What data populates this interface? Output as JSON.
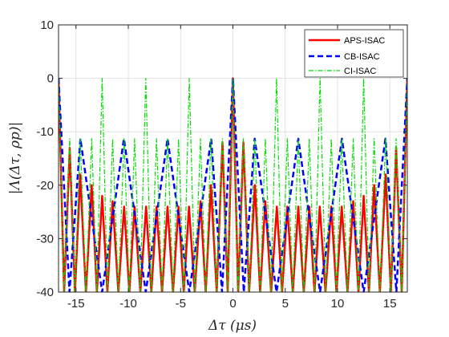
{
  "chart_data": {
    "type": "line",
    "title": "",
    "xlabel": "Δτ (μs)",
    "ylabel": "|Λ(Δτ, ρp)|",
    "xlim": [
      -16.67,
      16.67
    ],
    "ylim": [
      -40,
      10
    ],
    "xticks": [
      -15,
      -10,
      -5,
      0,
      5,
      10,
      15
    ],
    "xtick_labels": [
      "-15",
      "-10",
      "-5",
      "0",
      "5",
      "10",
      "15"
    ],
    "yticks": [
      10,
      0,
      -10,
      -20,
      -30,
      -40
    ],
    "ytick_labels": [
      "10",
      "0",
      "-10",
      "-20",
      "-30",
      "-40"
    ],
    "grid": true,
    "legend_position": "top-right",
    "series": [
      {
        "name": "APS-ISAC",
        "color": "#ff0000",
        "style": "solid",
        "x": [
          -16.67,
          -15.6,
          -14.6,
          -13.5,
          -12.5,
          -11.5,
          -10.4,
          -9.4,
          -8.3,
          -7.3,
          -6.25,
          -5.2,
          -4.2,
          -3.1,
          -2.1,
          -1.0,
          0,
          1.0,
          2.1,
          3.1,
          4.2,
          5.2,
          6.25,
          7.3,
          8.3,
          9.4,
          10.4,
          11.5,
          12.5,
          13.5,
          14.6,
          15.6,
          16.67
        ],
        "y": [
          0,
          -13,
          -18,
          -20,
          -22,
          -23,
          -24,
          -24,
          -24,
          -24,
          -24,
          -24,
          -24,
          -23,
          -20,
          -12,
          0,
          -12,
          -20,
          -23,
          -24,
          -24,
          -24,
          -24,
          -24,
          -24,
          -24,
          -23,
          -22,
          -20,
          -18,
          -13,
          0
        ]
      },
      {
        "name": "CB-ISAC",
        "color": "#0000ff",
        "style": "dashed",
        "x": [
          -16.67,
          -14.58,
          -12.5,
          -10.42,
          -8.33,
          -6.25,
          -4.17,
          -2.08,
          0,
          2.08,
          4.17,
          6.25,
          8.33,
          10.42,
          12.5,
          14.58,
          16.67
        ],
        "y": [
          0,
          -11.3,
          -40,
          -11.3,
          -40,
          -11.3,
          -40,
          -11.3,
          0,
          -11.3,
          -40,
          -11.3,
          -40,
          -11.3,
          -40,
          -11.3,
          0
        ]
      },
      {
        "name": "CI-ISAC",
        "color": "#00dd00",
        "style": "dash-dot",
        "x": [
          -16.67,
          -15.6,
          -14.6,
          -13.5,
          -12.5,
          -11.5,
          -10.4,
          -9.4,
          -8.33,
          -7.3,
          -6.25,
          -5.2,
          -4.17,
          -3.1,
          -2.1,
          -1.0,
          0,
          1.0,
          2.1,
          3.1,
          4.17,
          5.2,
          6.25,
          7.3,
          8.33,
          9.4,
          10.4,
          11.5,
          12.5,
          13.5,
          14.6,
          15.6,
          16.67
        ],
        "y": [
          0,
          -11.3,
          -11.3,
          -11.3,
          0,
          -11.3,
          -11.3,
          -11.3,
          0,
          -11.3,
          -11.3,
          -11.3,
          0,
          -11.3,
          -11.3,
          -11.3,
          0,
          -11.3,
          -11.3,
          -11.3,
          0,
          -11.3,
          -11.3,
          -11.3,
          0,
          -11.3,
          -11.3,
          -11.3,
          0,
          -11.3,
          -11.3,
          -11.3,
          0
        ]
      }
    ]
  }
}
